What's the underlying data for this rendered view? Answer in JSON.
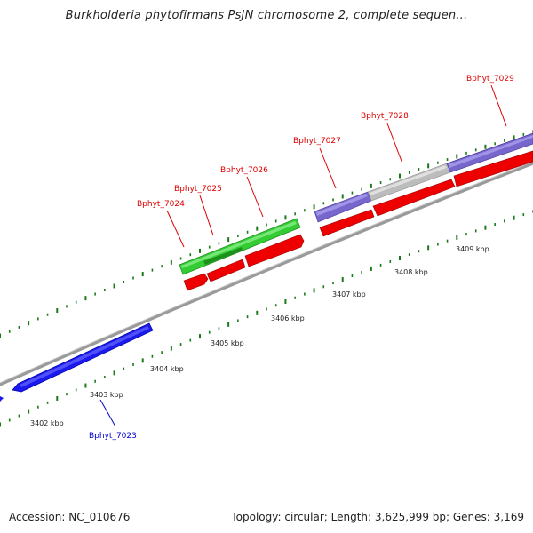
{
  "title": "Burkholderia phytofirmans PsJN chromosome 2, complete sequen...",
  "footer": {
    "accession": "Accession: NC_010676",
    "summary": "Topology: circular; Length: 3,625,999 bp; Genes: 3,169"
  },
  "colors": {
    "red": "#ff0000",
    "green": "#33cc33",
    "purple": "#7766cc",
    "gray": "#c0c0c0",
    "blue": "#0000ee",
    "tick": "#006600",
    "backbone": "#888888"
  },
  "kbp_labels": [
    "3402 kbp",
    "3403 kbp",
    "3404 kbp",
    "3405 kbp",
    "3406 kbp",
    "3407 kbp",
    "3408 kbp",
    "3409 kbp"
  ],
  "genes": [
    {
      "name": "Bphyt_7023",
      "color": "blue"
    },
    {
      "name": "Bphyt_7024",
      "color": "red"
    },
    {
      "name": "Bphyt_7025",
      "color": "red"
    },
    {
      "name": "Bphyt_7026",
      "color": "red"
    },
    {
      "name": "Bphyt_7027",
      "color": "red"
    },
    {
      "name": "Bphyt_7028",
      "color": "red"
    },
    {
      "name": "Bphyt_7029",
      "color": "red"
    }
  ]
}
